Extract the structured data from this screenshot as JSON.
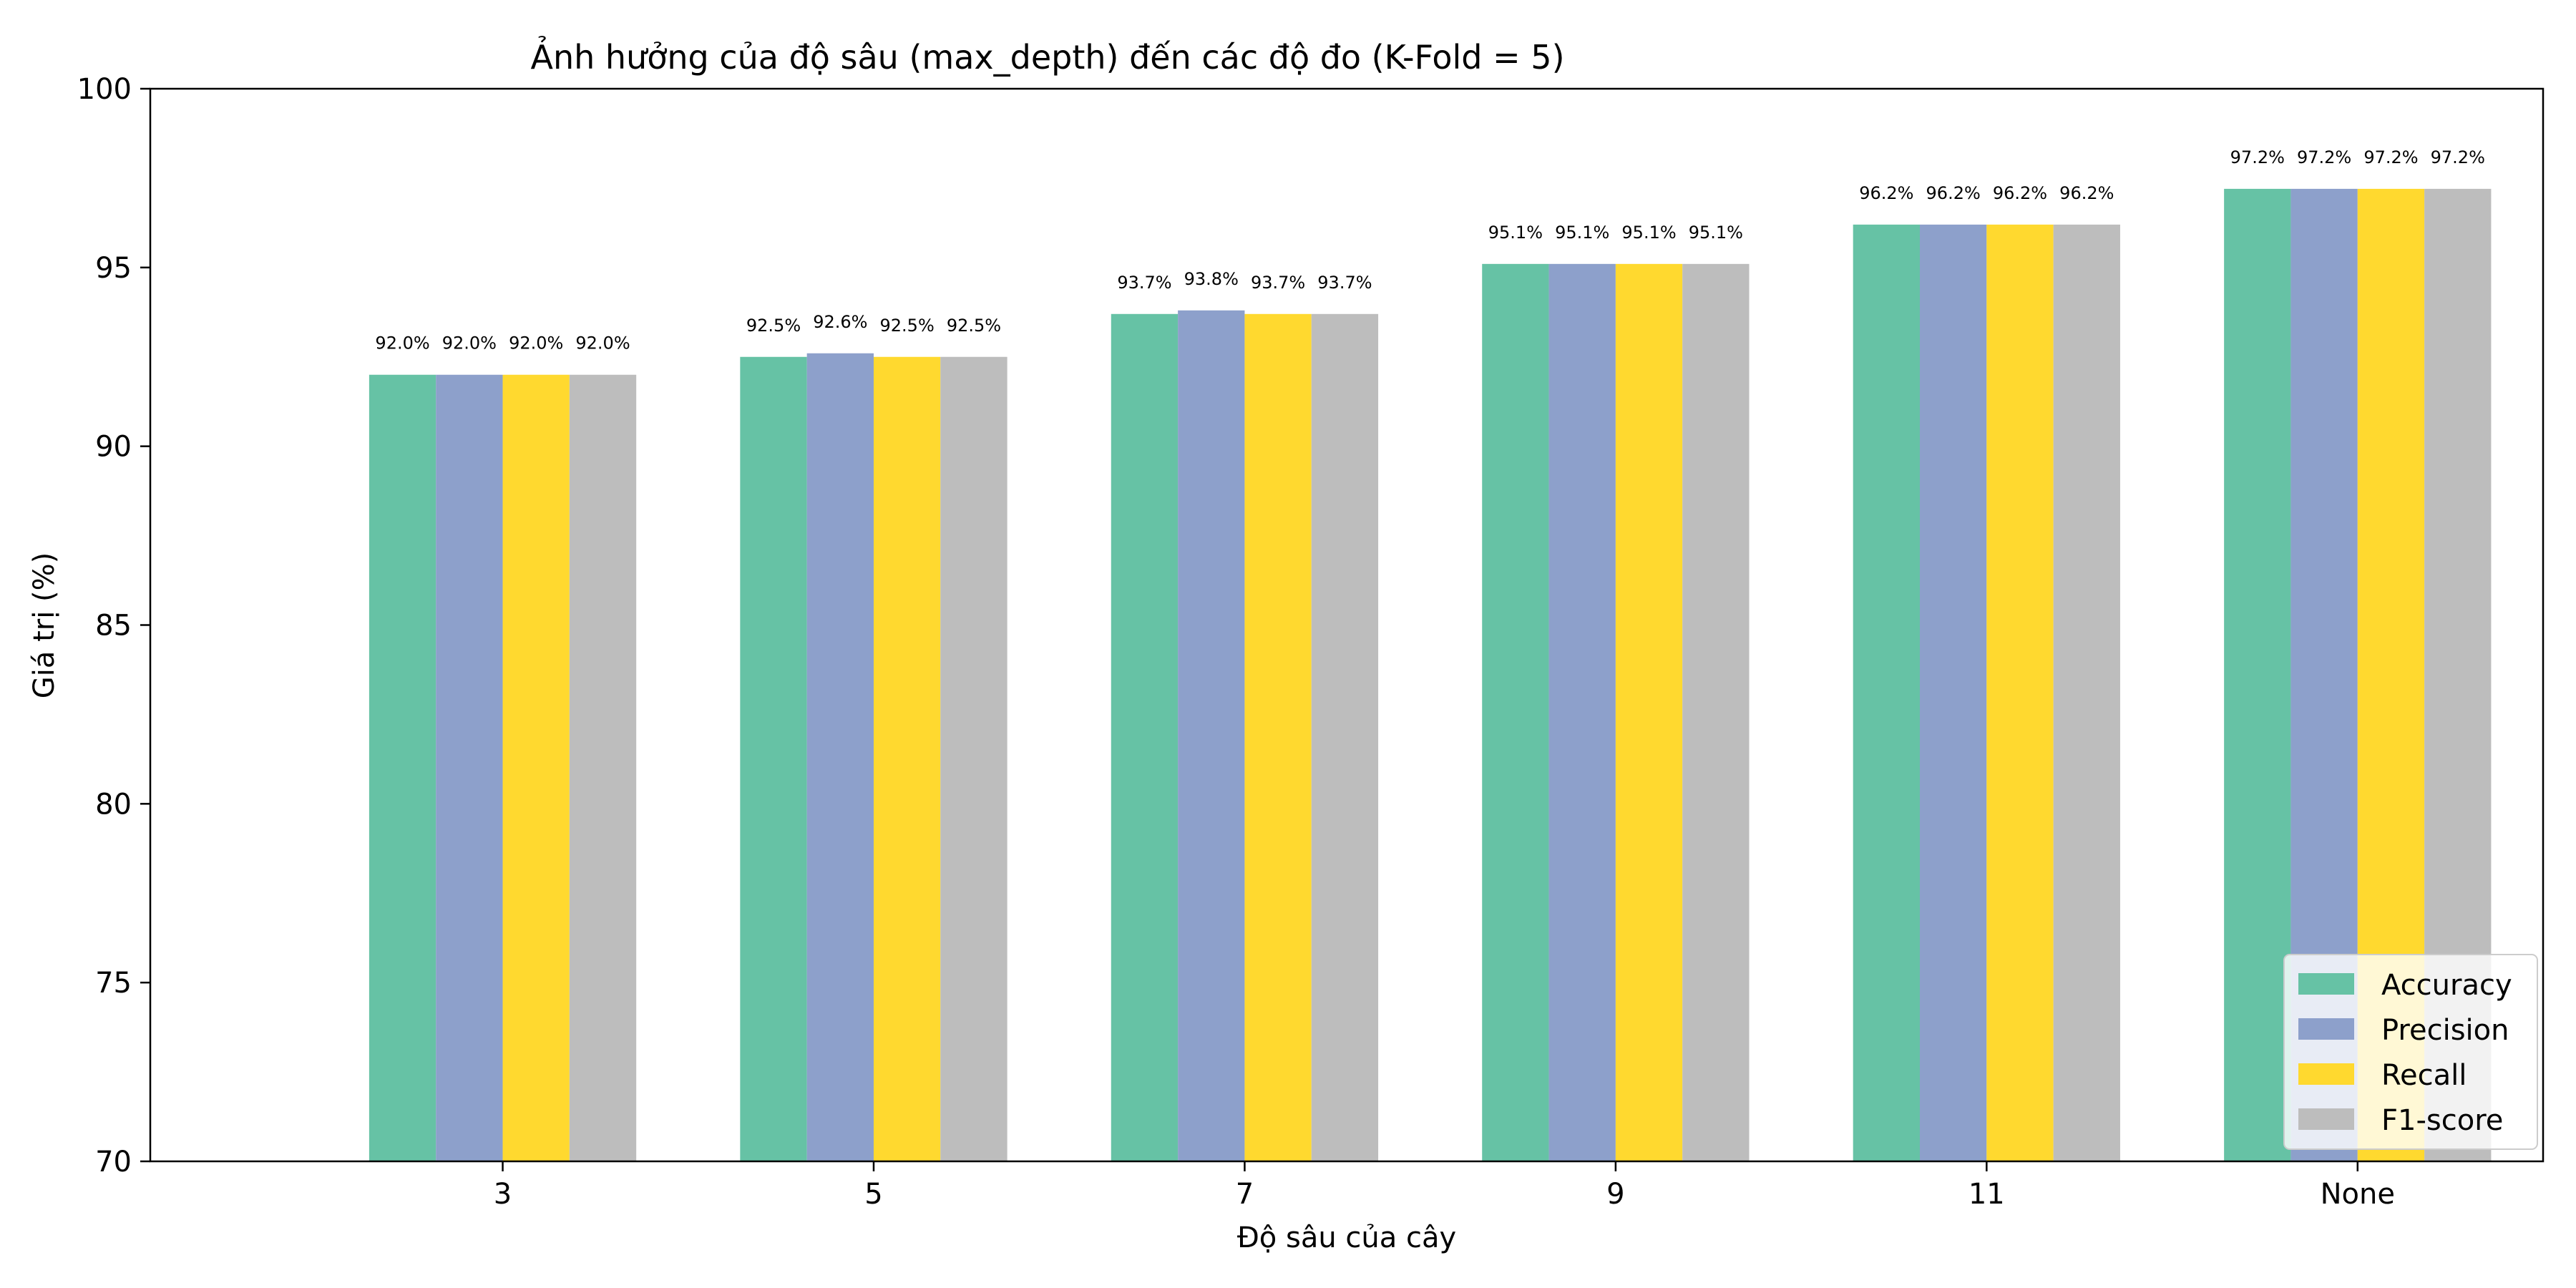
{
  "chart_data": {
    "type": "bar",
    "title": "Ảnh hưởng của độ sâu (max_depth) đến các độ đo (K-Fold = 5)",
    "xlabel": "Độ sâu của cây",
    "ylabel": "Giá trị (%)",
    "categories": [
      "3",
      "5",
      "7",
      "9",
      "11",
      "None"
    ],
    "ylim": [
      70,
      100
    ],
    "yticks": [
      70,
      75,
      80,
      85,
      90,
      95,
      100
    ],
    "grid": false,
    "legend_position": "bottom-right",
    "series": [
      {
        "name": "Accuracy",
        "color": "#66c2a5",
        "values": [
          92.0,
          92.5,
          93.7,
          95.1,
          96.2,
          97.2
        ],
        "labels": [
          "92.0%",
          "92.5%",
          "93.7%",
          "95.1%",
          "96.2%",
          "97.2%"
        ]
      },
      {
        "name": "Precision",
        "color": "#8da0cb",
        "values": [
          92.0,
          92.6,
          93.8,
          95.1,
          96.2,
          97.2
        ],
        "labels": [
          "92.0%",
          "92.6%",
          "93.8%",
          "95.1%",
          "96.2%",
          "97.2%"
        ]
      },
      {
        "name": "Recall",
        "color": "#ffd92f",
        "values": [
          92.0,
          92.5,
          93.7,
          95.1,
          96.2,
          97.2
        ],
        "labels": [
          "92.0%",
          "92.5%",
          "93.7%",
          "95.1%",
          "96.2%",
          "97.2%"
        ]
      },
      {
        "name": "F1-score",
        "color": "#bdbdbd",
        "values": [
          92.0,
          92.5,
          93.7,
          95.1,
          96.2,
          97.2
        ],
        "labels": [
          "92.0%",
          "92.5%",
          "93.7%",
          "95.1%",
          "96.2%",
          "97.2%"
        ]
      }
    ]
  }
}
